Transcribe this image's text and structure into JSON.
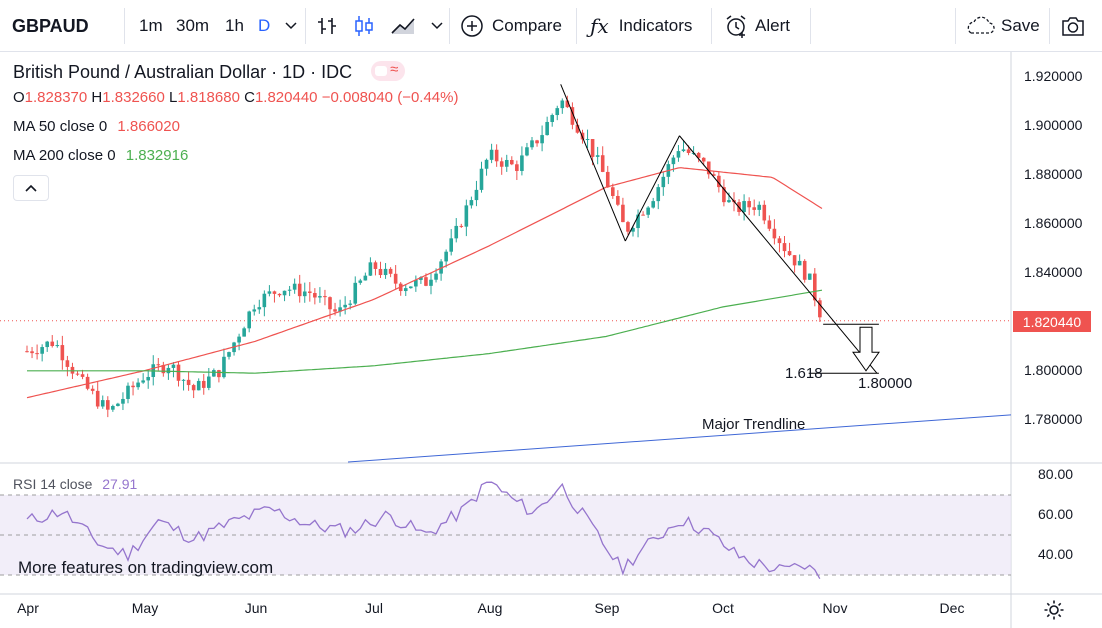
{
  "toolbar": {
    "symbol": "GBPAUD",
    "intervals": [
      "1m",
      "30m",
      "1h",
      "D"
    ],
    "compare_label": "Compare",
    "indicators_label": "Indicators",
    "alert_label": "Alert",
    "save_label": "Save"
  },
  "legend": {
    "title": "British Pound / Australian Dollar · 1D · IDC",
    "ohlc": {
      "o_label": "O",
      "o": "1.828370",
      "h_label": "H",
      "h": "1.832660",
      "l_label": "L",
      "l": "1.818680",
      "c_label": "C",
      "c": "1.820440",
      "change": "−0.008040 (−0.44%)"
    },
    "ma50_label": "MA 50 close 0",
    "ma50_value": "1.866020",
    "ma200_label": "MA 200 close 0",
    "ma200_value": "1.832916"
  },
  "price_axis": {
    "ticks": [
      "1.920000",
      "1.900000",
      "1.880000",
      "1.860000",
      "1.840000",
      "1.820000",
      "1.800000",
      "1.780000"
    ],
    "last_price": "1.820440"
  },
  "annotations": {
    "fib_label": "1.618",
    "target_label": "1.80000",
    "trendline_label": "Major Trendline"
  },
  "rsi": {
    "label": "RSI 14 close",
    "value": "27.91",
    "ticks": [
      "80.00",
      "60.00",
      "40.00"
    ]
  },
  "watermark": "More features on tradingview.com",
  "time_axis": {
    "labels": [
      "Apr",
      "May",
      "Jun",
      "Jul",
      "Aug",
      "Sep",
      "Oct",
      "Nov",
      "Dec"
    ]
  },
  "colors": {
    "up": "#26a69a",
    "down": "#ef5350",
    "ma50": "#ef5350",
    "ma200": "#4caf50",
    "rsi": "#9575cd",
    "trendline": "#3f67d6",
    "accent": "#2962ff"
  },
  "chart_data": {
    "type": "candlestick",
    "xlabel": "",
    "ylabel": "",
    "x_labels": [
      "Apr",
      "May",
      "Jun",
      "Jul",
      "Aug",
      "Sep",
      "Oct",
      "Nov",
      "Dec"
    ],
    "ylim": [
      1.77,
      1.925
    ],
    "price_anchors": [
      [
        "Apr 1",
        1.808
      ],
      [
        "Apr 8",
        1.812
      ],
      [
        "Apr 15",
        1.795
      ],
      [
        "Apr 22",
        1.783
      ],
      [
        "May 1",
        1.798
      ],
      [
        "May 8",
        1.803
      ],
      [
        "May 15",
        1.792
      ],
      [
        "May 22",
        1.8
      ],
      [
        "Jun 1",
        1.828
      ],
      [
        "Jun 8",
        1.834
      ],
      [
        "Jun 15",
        1.832
      ],
      [
        "Jun 22",
        1.823
      ],
      [
        "Jul 1",
        1.843
      ],
      [
        "Jul 8",
        1.835
      ],
      [
        "Jul 15",
        1.836
      ],
      [
        "Jul 22",
        1.852
      ],
      [
        "Aug 1",
        1.888
      ],
      [
        "Aug 8",
        1.883
      ],
      [
        "Aug 15",
        1.897
      ],
      [
        "Aug 20",
        1.911
      ],
      [
        "Aug 27",
        1.894
      ],
      [
        "Sep 1",
        1.878
      ],
      [
        "Sep 6",
        1.857
      ],
      [
        "Sep 13",
        1.871
      ],
      [
        "Sep 20",
        1.892
      ],
      [
        "Sep 27",
        1.883
      ],
      [
        "Oct 4",
        1.866
      ],
      [
        "Oct 11",
        1.868
      ],
      [
        "Oct 18",
        1.851
      ],
      [
        "Oct 25",
        1.838
      ],
      [
        "Oct 29",
        1.82
      ]
    ],
    "ma50_anchors": [
      [
        "Apr 1",
        1.789
      ],
      [
        "May 1",
        1.8
      ],
      [
        "Jun 1",
        1.812
      ],
      [
        "Jul 1",
        1.829
      ],
      [
        "Aug 1",
        1.851
      ],
      [
        "Sep 1",
        1.875
      ],
      [
        "Sep 20",
        1.883
      ],
      [
        "Oct 15",
        1.879
      ],
      [
        "Oct 29",
        1.866
      ]
    ],
    "ma200_anchors": [
      [
        "Apr 1",
        1.8
      ],
      [
        "May 1",
        1.8
      ],
      [
        "Jun 1",
        1.799
      ],
      [
        "Jul 1",
        1.802
      ],
      [
        "Aug 1",
        1.807
      ],
      [
        "Sep 1",
        1.814
      ],
      [
        "Oct 1",
        1.826
      ],
      [
        "Oct 29",
        1.833
      ]
    ],
    "pattern_lines": [
      [
        [
          "Aug 20",
          1.917
        ],
        [
          "Sep 6",
          1.853
        ]
      ],
      [
        [
          "Sep 6",
          1.853
        ],
        [
          "Sep 20",
          1.896
        ]
      ],
      [
        [
          "Sep 20",
          1.896
        ],
        [
          "Nov 12",
          1.799
        ]
      ]
    ],
    "level_lines": [
      {
        "value": 1.819,
        "from": "Oct 29",
        "to": "Nov 12"
      },
      {
        "value": 1.799,
        "from": "Oct 25",
        "to": "Nov 12"
      }
    ],
    "major_trendline": [
      [
        "Jul 1",
        1.763
      ],
      [
        "Dec 31",
        1.782
      ]
    ],
    "rsi": {
      "ylim": [
        20,
        82
      ],
      "overbought": 70,
      "middle": 50,
      "oversold": 30,
      "anchors": [
        [
          "Apr 1",
          57
        ],
        [
          "Apr 10",
          62
        ],
        [
          "Apr 20",
          45
        ],
        [
          "Apr 27",
          40
        ],
        [
          "May 5",
          57
        ],
        [
          "May 15",
          48
        ],
        [
          "May 25",
          56
        ],
        [
          "Jun 5",
          63
        ],
        [
          "Jun 15",
          55
        ],
        [
          "Jun 25",
          52
        ],
        [
          "Jul 5",
          60
        ],
        [
          "Jul 15",
          50
        ],
        [
          "Jul 25",
          62
        ],
        [
          "Aug 1",
          77
        ],
        [
          "Aug 7",
          68
        ],
        [
          "Aug 13",
          61
        ],
        [
          "Aug 20",
          75
        ],
        [
          "Aug 27",
          57
        ],
        [
          "Sep 5",
          33
        ],
        [
          "Sep 10",
          42
        ],
        [
          "Sep 20",
          58
        ],
        [
          "Sep 27",
          52
        ],
        [
          "Oct 5",
          40
        ],
        [
          "Oct 10",
          36
        ],
        [
          "Oct 18",
          32
        ],
        [
          "Oct 24",
          35
        ],
        [
          "Oct 29",
          28
        ]
      ]
    }
  }
}
